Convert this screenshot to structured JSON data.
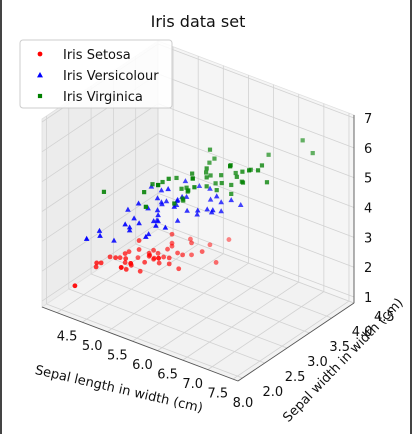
{
  "chart_data": {
    "type": "scatter3d",
    "title": "Iris data set",
    "xlabel": "Sepal length in width (cm)",
    "ylabel": "Sepal width in width (cm)",
    "zlabel": "",
    "xlim": [
      4.2,
      8.1
    ],
    "ylim": [
      1.9,
      4.5
    ],
    "zlim": [
      0.8,
      7.1
    ],
    "x_ticks": [
      "4.5",
      "5.0",
      "5.5",
      "6.0",
      "6.5",
      "7.0",
      "7.5",
      "8.0"
    ],
    "y_ticks": [
      "2.0",
      "2.5",
      "3.0",
      "3.5",
      "4.0",
      "4.5"
    ],
    "z_ticks": [
      "1",
      "2",
      "3",
      "4",
      "5",
      "6",
      "7"
    ],
    "legend_position": "top-left",
    "grid": true,
    "series": [
      {
        "name": "Iris Setosa",
        "color": "#ff0000",
        "marker": "circle",
        "points": [
          [
            5.1,
            3.5,
            1.4
          ],
          [
            4.9,
            3.0,
            1.4
          ],
          [
            4.7,
            3.2,
            1.3
          ],
          [
            4.6,
            3.1,
            1.5
          ],
          [
            5.0,
            3.6,
            1.4
          ],
          [
            5.4,
            3.9,
            1.7
          ],
          [
            4.6,
            3.4,
            1.4
          ],
          [
            5.0,
            3.4,
            1.5
          ],
          [
            4.4,
            2.9,
            1.4
          ],
          [
            4.9,
            3.1,
            1.5
          ],
          [
            5.4,
            3.7,
            1.5
          ],
          [
            4.8,
            3.4,
            1.6
          ],
          [
            4.8,
            3.0,
            1.4
          ],
          [
            4.3,
            3.0,
            1.1
          ],
          [
            5.8,
            4.0,
            1.2
          ],
          [
            5.7,
            4.4,
            1.5
          ],
          [
            5.4,
            3.9,
            1.3
          ],
          [
            5.1,
            3.5,
            1.4
          ],
          [
            5.7,
            3.8,
            1.7
          ],
          [
            5.1,
            3.8,
            1.5
          ],
          [
            5.4,
            3.4,
            1.7
          ],
          [
            5.1,
            3.7,
            1.5
          ],
          [
            4.6,
            3.6,
            1.0
          ],
          [
            5.1,
            3.3,
            1.7
          ],
          [
            4.8,
            3.4,
            1.9
          ],
          [
            5.0,
            3.0,
            1.6
          ],
          [
            5.0,
            3.4,
            1.6
          ],
          [
            5.2,
            3.5,
            1.5
          ],
          [
            5.2,
            3.4,
            1.4
          ],
          [
            4.7,
            3.2,
            1.6
          ],
          [
            4.8,
            3.1,
            1.6
          ],
          [
            5.4,
            3.4,
            1.5
          ],
          [
            5.2,
            4.1,
            1.5
          ],
          [
            5.5,
            4.2,
            1.4
          ],
          [
            4.9,
            3.1,
            1.5
          ],
          [
            5.0,
            3.2,
            1.2
          ],
          [
            5.5,
            3.5,
            1.3
          ],
          [
            4.4,
            3.0,
            1.3
          ],
          [
            5.1,
            3.4,
            1.5
          ],
          [
            5.0,
            3.5,
            1.3
          ],
          [
            4.5,
            2.3,
            1.3
          ],
          [
            4.4,
            3.2,
            1.3
          ],
          [
            5.0,
            3.5,
            1.6
          ],
          [
            5.1,
            3.8,
            1.9
          ],
          [
            4.8,
            3.0,
            1.4
          ],
          [
            5.1,
            3.8,
            1.6
          ],
          [
            4.6,
            3.2,
            1.4
          ],
          [
            5.3,
            3.7,
            1.5
          ],
          [
            5.0,
            3.3,
            1.4
          ]
        ]
      },
      {
        "name": "Iris Versicolour",
        "color": "#0000ff",
        "marker": "triangle",
        "points": [
          [
            7.0,
            3.2,
            4.7
          ],
          [
            6.4,
            3.2,
            4.5
          ],
          [
            6.9,
            3.1,
            4.9
          ],
          [
            5.5,
            2.3,
            4.0
          ],
          [
            6.5,
            2.8,
            4.6
          ],
          [
            5.7,
            2.8,
            4.5
          ],
          [
            6.3,
            3.3,
            4.7
          ],
          [
            4.9,
            2.4,
            3.3
          ],
          [
            6.6,
            2.9,
            4.6
          ],
          [
            5.2,
            2.7,
            3.9
          ],
          [
            5.0,
            2.0,
            3.5
          ],
          [
            5.9,
            3.0,
            4.2
          ],
          [
            6.0,
            2.2,
            4.0
          ],
          [
            6.1,
            2.9,
            4.7
          ],
          [
            5.6,
            2.9,
            3.6
          ],
          [
            6.7,
            3.1,
            4.4
          ],
          [
            5.6,
            3.0,
            4.5
          ],
          [
            5.8,
            2.7,
            4.1
          ],
          [
            6.2,
            2.2,
            4.5
          ],
          [
            5.6,
            2.5,
            3.9
          ],
          [
            5.9,
            3.2,
            4.8
          ],
          [
            6.1,
            2.8,
            4.0
          ],
          [
            6.3,
            2.5,
            4.9
          ],
          [
            6.1,
            2.8,
            4.7
          ],
          [
            6.4,
            2.9,
            4.3
          ],
          [
            6.6,
            3.0,
            4.4
          ],
          [
            6.8,
            2.8,
            4.8
          ],
          [
            6.7,
            3.0,
            5.0
          ],
          [
            6.0,
            2.9,
            4.5
          ],
          [
            5.7,
            2.6,
            3.5
          ],
          [
            5.5,
            2.4,
            3.8
          ],
          [
            5.5,
            2.4,
            3.7
          ],
          [
            5.8,
            2.7,
            3.9
          ],
          [
            6.0,
            2.7,
            5.1
          ],
          [
            5.4,
            3.0,
            4.5
          ],
          [
            6.0,
            3.4,
            4.5
          ],
          [
            6.7,
            3.1,
            4.7
          ],
          [
            6.3,
            2.3,
            4.4
          ],
          [
            5.6,
            3.0,
            4.1
          ],
          [
            5.5,
            2.5,
            4.0
          ],
          [
            5.5,
            2.6,
            4.4
          ],
          [
            6.1,
            3.0,
            4.6
          ],
          [
            5.8,
            2.6,
            4.0
          ],
          [
            5.0,
            2.3,
            3.3
          ],
          [
            5.6,
            2.7,
            4.2
          ],
          [
            5.7,
            3.0,
            4.2
          ],
          [
            5.7,
            2.9,
            4.2
          ],
          [
            6.2,
            2.9,
            4.3
          ],
          [
            5.1,
            2.5,
            3.0
          ],
          [
            5.7,
            2.8,
            4.1
          ]
        ]
      },
      {
        "name": "Iris Virginica",
        "color": "#008000",
        "marker": "square",
        "points": [
          [
            6.3,
            3.3,
            6.0
          ],
          [
            5.8,
            2.7,
            5.1
          ],
          [
            7.1,
            3.0,
            5.9
          ],
          [
            6.3,
            2.9,
            5.6
          ],
          [
            6.5,
            3.0,
            5.8
          ],
          [
            7.6,
            3.0,
            6.6
          ],
          [
            4.9,
            2.5,
            4.5
          ],
          [
            7.3,
            2.9,
            6.3
          ],
          [
            6.7,
            2.5,
            5.8
          ],
          [
            7.2,
            3.6,
            6.1
          ],
          [
            6.5,
            3.2,
            5.1
          ],
          [
            6.4,
            2.7,
            5.3
          ],
          [
            6.8,
            3.0,
            5.5
          ],
          [
            5.7,
            2.5,
            5.0
          ],
          [
            5.8,
            2.8,
            5.1
          ],
          [
            6.4,
            3.2,
            5.3
          ],
          [
            6.5,
            3.0,
            5.5
          ],
          [
            7.7,
            3.8,
            6.7
          ],
          [
            7.7,
            2.6,
            6.9
          ],
          [
            6.0,
            2.2,
            5.0
          ],
          [
            6.9,
            3.2,
            5.7
          ],
          [
            5.6,
            2.8,
            4.9
          ],
          [
            7.7,
            2.8,
            6.7
          ],
          [
            6.3,
            2.7,
            4.9
          ],
          [
            6.7,
            3.3,
            5.7
          ],
          [
            7.2,
            3.2,
            6.0
          ],
          [
            6.2,
            2.8,
            4.8
          ],
          [
            6.1,
            3.0,
            4.9
          ],
          [
            6.4,
            2.8,
            5.6
          ],
          [
            7.2,
            3.0,
            5.8
          ],
          [
            7.4,
            2.8,
            6.1
          ],
          [
            7.9,
            3.8,
            6.4
          ],
          [
            6.4,
            2.8,
            5.6
          ],
          [
            6.3,
            2.8,
            5.1
          ],
          [
            6.1,
            2.6,
            5.6
          ],
          [
            7.7,
            3.0,
            6.1
          ],
          [
            6.3,
            3.4,
            5.6
          ],
          [
            6.4,
            3.1,
            5.5
          ],
          [
            6.0,
            3.0,
            4.8
          ],
          [
            6.9,
            3.1,
            5.4
          ],
          [
            6.7,
            3.1,
            5.6
          ],
          [
            6.9,
            3.1,
            5.1
          ],
          [
            5.8,
            2.7,
            5.1
          ],
          [
            6.8,
            3.2,
            5.9
          ],
          [
            6.7,
            3.3,
            5.7
          ],
          [
            6.7,
            3.0,
            5.2
          ],
          [
            6.3,
            2.5,
            5.0
          ],
          [
            6.5,
            3.0,
            5.2
          ],
          [
            6.2,
            3.4,
            5.4
          ],
          [
            5.9,
            3.0,
            5.1
          ]
        ]
      }
    ]
  }
}
